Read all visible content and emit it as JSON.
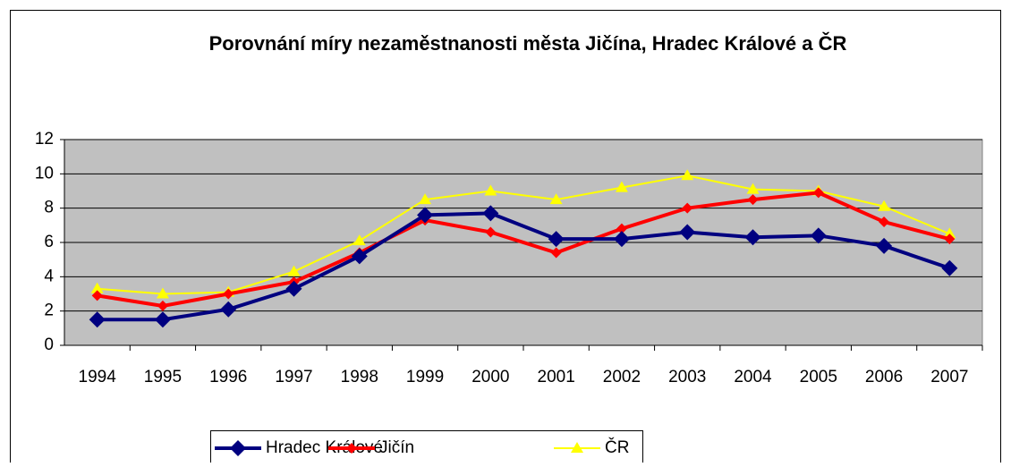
{
  "chart_data": {
    "type": "line",
    "title": "Porovnání míry nezaměstnanosti města Jičína, Hradec Králové a ČR",
    "categories": [
      "1994",
      "1995",
      "1996",
      "1997",
      "1998",
      "1999",
      "2000",
      "2001",
      "2002",
      "2003",
      "2004",
      "2005",
      "2006",
      "2007"
    ],
    "series": [
      {
        "name": "Hradec Králové",
        "color": "#000080",
        "marker": "diamond",
        "values": [
          1.5,
          1.5,
          2.1,
          3.3,
          5.2,
          7.6,
          7.7,
          6.2,
          6.2,
          6.6,
          6.3,
          6.4,
          5.8,
          4.5
        ]
      },
      {
        "name": "Jičín",
        "color": "#ff0000",
        "marker": "diamond",
        "values": [
          2.9,
          2.3,
          3.0,
          3.7,
          5.4,
          7.3,
          6.6,
          5.4,
          6.8,
          8.0,
          8.5,
          8.9,
          7.2,
          6.2
        ]
      },
      {
        "name": "ČR",
        "color": "#ffff00",
        "marker": "triangle",
        "values": [
          3.3,
          3.0,
          3.1,
          4.3,
          6.1,
          8.5,
          9.0,
          8.5,
          9.2,
          9.9,
          9.1,
          9.0,
          8.1,
          6.5
        ]
      }
    ],
    "ylim": [
      0,
      12
    ],
    "yticks": [
      0,
      2,
      4,
      6,
      8,
      10,
      12
    ],
    "grid": true,
    "legend": "bottom"
  }
}
